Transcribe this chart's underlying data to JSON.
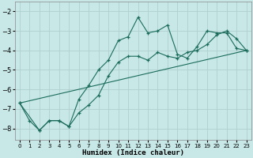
{
  "xlabel": "Humidex (Indice chaleur)",
  "bg_color": "#c8e8e8",
  "grid_color": "#afd0d0",
  "line_color": "#1a6b5a",
  "xlim": [
    -0.5,
    23.5
  ],
  "ylim": [
    -8.6,
    -1.5
  ],
  "yticks": [
    -8,
    -7,
    -6,
    -5,
    -4,
    -3,
    -2
  ],
  "xticks": [
    0,
    1,
    2,
    3,
    4,
    5,
    6,
    7,
    8,
    9,
    10,
    11,
    12,
    13,
    14,
    15,
    16,
    17,
    18,
    19,
    20,
    21,
    22,
    23
  ],
  "line1_x": [
    0,
    1,
    2,
    3,
    4,
    5,
    6,
    7,
    8,
    9,
    10,
    11,
    12,
    13,
    14,
    15,
    16,
    17,
    18,
    19,
    20,
    21,
    22,
    23
  ],
  "line1_y": [
    -6.7,
    -7.6,
    -8.1,
    -7.6,
    -7.6,
    -7.9,
    -6.5,
    -5.8,
    -5.0,
    -4.5,
    -3.5,
    -3.3,
    -2.3,
    -3.1,
    -3.0,
    -2.7,
    -4.2,
    -4.4,
    -3.8,
    -3.0,
    -3.1,
    -3.1,
    -3.9,
    -4.0
  ],
  "line2_x": [
    0,
    2,
    3,
    4,
    5,
    6,
    7,
    8,
    9,
    10,
    11,
    12,
    13,
    14,
    15,
    16,
    17,
    18,
    19,
    20,
    21,
    22,
    23
  ],
  "line2_y": [
    -6.7,
    -8.1,
    -7.6,
    -7.6,
    -7.9,
    -7.2,
    -6.8,
    -6.3,
    -5.3,
    -4.6,
    -4.3,
    -4.3,
    -4.5,
    -4.1,
    -4.3,
    -4.4,
    -4.1,
    -4.0,
    -3.7,
    -3.2,
    -3.0,
    -3.4,
    -4.0
  ],
  "line3_x": [
    0,
    23
  ],
  "line3_y": [
    -6.7,
    -4.0
  ]
}
